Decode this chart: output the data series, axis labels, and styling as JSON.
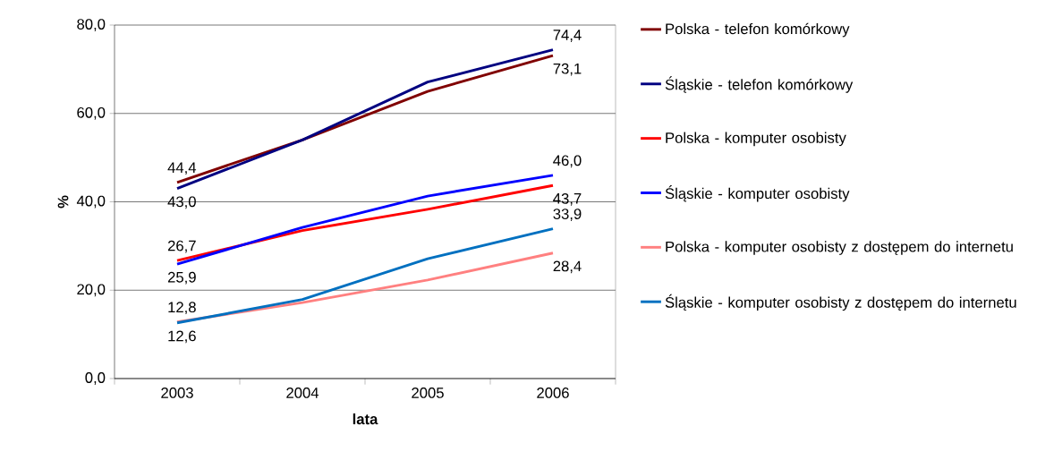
{
  "chart_data": {
    "type": "line",
    "xlabel": "lata",
    "ylabel": "%",
    "categories": [
      "2003",
      "2004",
      "2005",
      "2006"
    ],
    "series": [
      {
        "name": "Polska - telefon komórkowy",
        "color": "#800000",
        "values": [
          44.4,
          54.0,
          65.0,
          73.1
        ],
        "value_labels": [
          "44,4",
          null,
          null,
          "73,1"
        ]
      },
      {
        "name": "Śląskie - telefon komórkowy",
        "color": "#000080",
        "values": [
          43.0,
          54.0,
          67.1,
          74.4
        ],
        "value_labels": [
          "43,0",
          null,
          null,
          "74,4"
        ]
      },
      {
        "name": "Polska - komputer osobisty",
        "color": "#ff0000",
        "values": [
          26.7,
          33.5,
          38.3,
          43.7
        ],
        "value_labels": [
          "26,7",
          null,
          null,
          "43,7"
        ]
      },
      {
        "name": "Śląskie - komputer osobisty",
        "color": "#0000ff",
        "values": [
          25.9,
          34.2,
          41.3,
          46.0
        ],
        "value_labels": [
          "25,9",
          null,
          null,
          "46,0"
        ]
      },
      {
        "name": "Polska - komputer osobisty z dostępem do internetu",
        "color": "#ff8080",
        "values": [
          12.8,
          17.2,
          22.3,
          28.4
        ],
        "value_labels": [
          "12,8",
          null,
          null,
          "28,4"
        ]
      },
      {
        "name": "Śląskie - komputer osobisty z dostępem do internetu",
        "color": "#0070c0",
        "values": [
          12.6,
          17.9,
          27.1,
          33.9
        ],
        "value_labels": [
          "12,6",
          null,
          null,
          "33,9"
        ]
      }
    ],
    "ylim": [
      0,
      80
    ],
    "yticks": [
      {
        "value": 0,
        "label": "0,0"
      },
      {
        "value": 20,
        "label": "20,0"
      },
      {
        "value": 40,
        "label": "40,0"
      },
      {
        "value": 60,
        "label": "60,0"
      },
      {
        "value": 80,
        "label": "80,0"
      }
    ],
    "grid": "y",
    "legend": "right",
    "marker": "none",
    "line_style": "solid"
  }
}
